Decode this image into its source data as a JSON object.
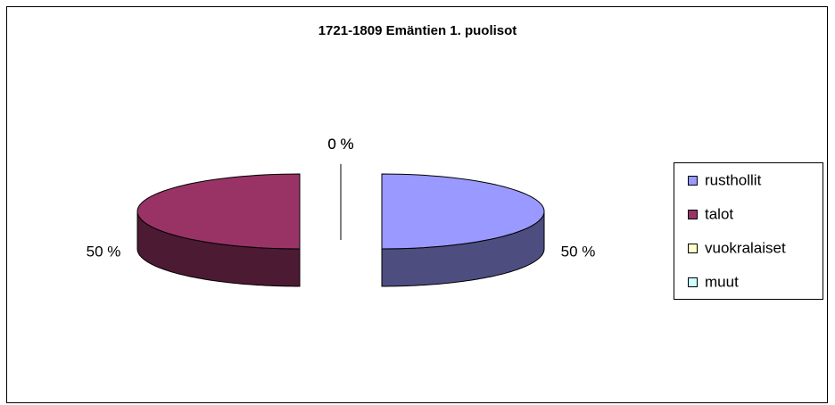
{
  "chart_data": {
    "type": "pie",
    "title": "1721-1809 Emäntien 1. puolisot",
    "categories": [
      "rusthollit",
      "talot",
      "vuokralaiset",
      "muut"
    ],
    "values": [
      50,
      50,
      0,
      0
    ],
    "value_labels": [
      "50 %",
      "50 %",
      "0 %",
      "0 %"
    ],
    "colors": [
      "#9999ff",
      "#993366",
      "#ffffcc",
      "#ccffff"
    ],
    "legend": "right"
  }
}
